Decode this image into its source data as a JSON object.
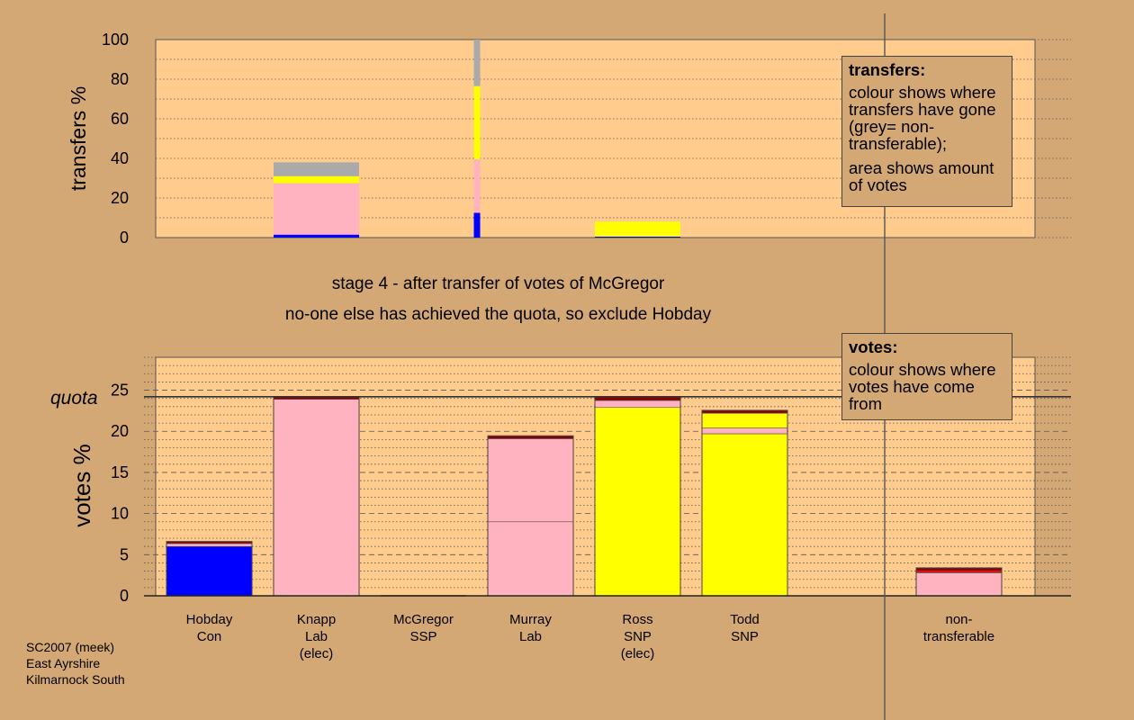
{
  "colors": {
    "background": "#d4a875",
    "plot_bg": "#ffcc8e",
    "quota_line": "#333333",
    "swatches": {
      "blue": "#0000ff",
      "pink": "#ffb3c1",
      "yellow": "#ffff00",
      "darkred": "#8b0000",
      "red": "#ff0000",
      "grey": "#aaaaaa"
    }
  },
  "titles": {
    "line1": "stage 4 - after transfer of votes of McGregor",
    "line2": "no-one else has achieved the quota, so exclude Hobday"
  },
  "legend_transfers": {
    "heading": "transfers:",
    "line1": "colour shows where transfers have gone (grey= non-transferable);",
    "line2": "area shows amount of votes"
  },
  "legend_votes": {
    "heading": "votes:",
    "line1": "colour shows where votes have come from"
  },
  "footer": {
    "line1": "SC2007 (meek)",
    "line2": "East Ayrshire",
    "line3": "Kilmarnock South"
  },
  "chart_data": [
    {
      "type": "bar",
      "ylabel": "transfers %",
      "ylim": [
        0,
        100
      ],
      "yticks": [
        0,
        20,
        40,
        60,
        80,
        100
      ],
      "grid": "dotted horizontal lines every 10",
      "bars": [
        {
          "slot": 1,
          "width": "full",
          "segments": [
            {
              "color": "blue",
              "value": 1.5
            },
            {
              "color": "pink",
              "value": 26
            },
            {
              "color": "yellow",
              "value": 3.5
            },
            {
              "color": "grey",
              "value": 7
            }
          ]
        },
        {
          "slot": 2.5,
          "width": "thin",
          "segments": [
            {
              "color": "blue",
              "value": 12.5
            },
            {
              "color": "pink",
              "value": 27
            },
            {
              "color": "yellow",
              "value": 37
            },
            {
              "color": "grey",
              "value": 23.5
            }
          ]
        },
        {
          "slot": 4,
          "width": "full",
          "segments": [
            {
              "color": "blue",
              "value": 0.5
            },
            {
              "color": "yellow",
              "value": 7.5
            }
          ]
        }
      ]
    },
    {
      "type": "bar",
      "ylabel": "votes %",
      "ylim": [
        0,
        29
      ],
      "yticks": [
        0,
        5,
        10,
        15,
        20,
        25
      ],
      "grid": "dashed lines every 5, dotted lines every 1",
      "quota": {
        "label": "quota",
        "value": 24.2
      },
      "categories": [
        {
          "lines": [
            "Hobday",
            "Con"
          ]
        },
        {
          "lines": [
            "Knapp",
            "Lab",
            "(elec)"
          ]
        },
        {
          "lines": [
            "McGregor",
            "SSP"
          ]
        },
        {
          "lines": [
            "Murray",
            "Lab"
          ]
        },
        {
          "lines": [
            "Ross",
            "SNP",
            "(elec)"
          ]
        },
        {
          "lines": [
            "Todd",
            "SNP"
          ]
        },
        {
          "lines": []
        },
        {
          "lines": [
            "non-",
            "transferable"
          ]
        }
      ],
      "series_values": [
        [
          {
            "color": "blue",
            "value": 6.0
          },
          {
            "color": "pink",
            "value": 0.35
          },
          {
            "color": "darkred",
            "value": 0.25
          }
        ],
        [
          {
            "color": "pink",
            "value": 23.9
          },
          {
            "color": "darkred",
            "value": 0.3
          }
        ],
        [],
        [
          {
            "color": "pink",
            "value": 9.0
          },
          {
            "color": "pink",
            "value": 10.1
          },
          {
            "color": "darkred",
            "value": 0.35
          }
        ],
        [
          {
            "color": "yellow",
            "value": 22.9
          },
          {
            "color": "pink",
            "value": 0.85
          },
          {
            "color": "darkred",
            "value": 0.45
          }
        ],
        [
          {
            "color": "yellow",
            "value": 19.7
          },
          {
            "color": "pink",
            "value": 0.7
          },
          {
            "color": "yellow",
            "value": 1.8
          },
          {
            "color": "darkred",
            "value": 0.35
          }
        ],
        [],
        [
          {
            "color": "pink",
            "value": 2.8
          },
          {
            "color": "red",
            "value": 0.25
          },
          {
            "color": "darkred",
            "value": 0.35
          }
        ]
      ]
    }
  ]
}
